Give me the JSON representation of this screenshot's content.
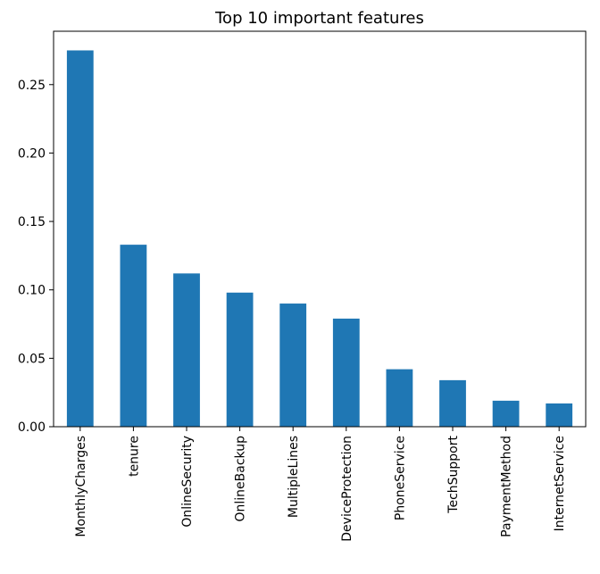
{
  "chart_data": {
    "type": "bar",
    "title": "Top 10 important features",
    "xlabel": "",
    "ylabel": "",
    "categories": [
      "MonthlyCharges",
      "tenure",
      "OnlineSecurity",
      "OnlineBackup",
      "MultipleLines",
      "DeviceProtection",
      "PhoneService",
      "TechSupport",
      "PaymentMethod",
      "InternetService"
    ],
    "values": [
      0.275,
      0.133,
      0.112,
      0.098,
      0.09,
      0.079,
      0.042,
      0.034,
      0.019,
      0.017
    ],
    "ylim": [
      0,
      0.289
    ],
    "yticks": [
      "0.00",
      "0.05",
      "0.10",
      "0.15",
      "0.20",
      "0.25"
    ],
    "bar_color": "#1f77b4",
    "grid": false,
    "legend": "none"
  }
}
